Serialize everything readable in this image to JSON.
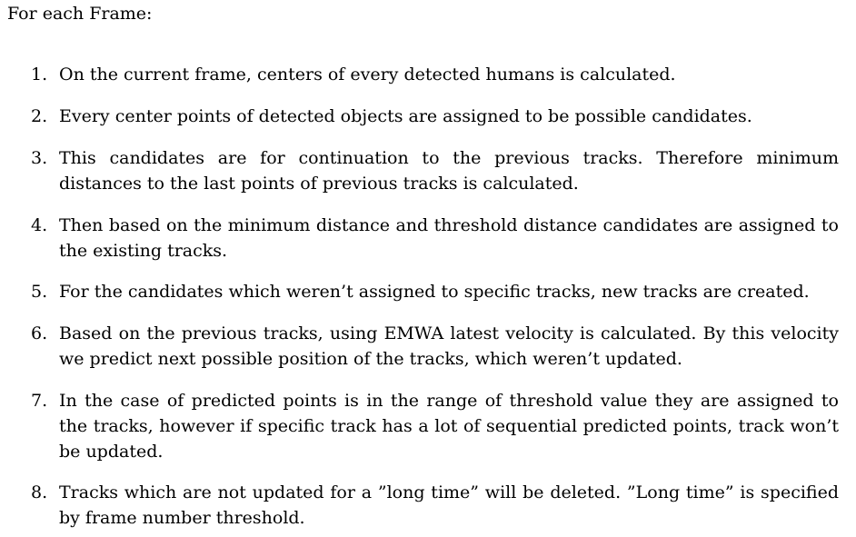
{
  "intro": "For each Frame:",
  "steps": [
    {
      "number": "1.",
      "text": "On the current frame, centers of every detected humans is calculated."
    },
    {
      "number": "2.",
      "text": "Every center points of detected objects are assigned to be possible candidates."
    },
    {
      "number": "3.",
      "text": "This candidates are for continuation to the previous tracks. Therefore minimum distances to the last points of previous tracks is calculated."
    },
    {
      "number": "4.",
      "text": "Then based on the minimum distance and threshold distance candidates are assigned to the existing tracks."
    },
    {
      "number": "5.",
      "text": "For the candidates which weren’t assigned to specific tracks, new tracks are created."
    },
    {
      "number": "6.",
      "text": "Based on the previous tracks, using EMWA latest velocity is calculated. By this velocity we predict next possible position of the tracks, which weren’t updated."
    },
    {
      "number": "7.",
      "text": "In the case of predicted points is in the range of threshold value they are assigned to the tracks, however if specific track has a lot of sequential predicted points, track won’t be updated."
    },
    {
      "number": "8.",
      "text": "Tracks which are not updated for a ”long time” will be deleted. ”Long time” is specified by frame number threshold."
    }
  ]
}
